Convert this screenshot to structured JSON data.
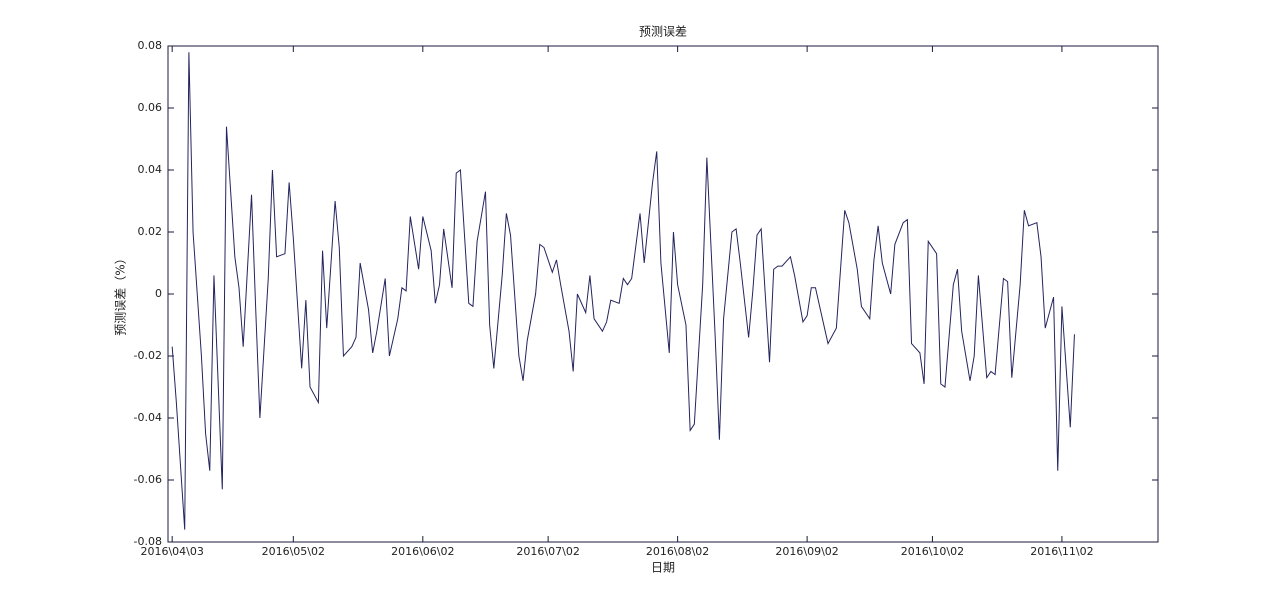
{
  "chart_data": {
    "type": "line",
    "title": "预测误差",
    "xlabel": "日期",
    "ylabel": "预测误差（%）",
    "color": "#24245e",
    "grid": false,
    "xlim": [
      "2016-04-02",
      "2016-11-25"
    ],
    "xticks": [
      {
        "value": "2016-04-03",
        "label": "2016\\04\\03"
      },
      {
        "value": "2016-05-02",
        "label": "2016\\05\\02"
      },
      {
        "value": "2016-06-02",
        "label": "2016\\06\\02"
      },
      {
        "value": "2016-07-02",
        "label": "2016\\07\\02"
      },
      {
        "value": "2016-08-02",
        "label": "2016\\08\\02"
      },
      {
        "value": "2016-09-02",
        "label": "2016\\09\\02"
      },
      {
        "value": "2016-10-02",
        "label": "2016\\10\\02"
      },
      {
        "value": "2016-11-02",
        "label": "2016\\11\\02"
      }
    ],
    "ylim": [
      -0.08,
      0.08
    ],
    "yticks": [
      -0.08,
      -0.06,
      -0.04,
      -0.02,
      0,
      0.02,
      0.04,
      0.06,
      0.08
    ],
    "x": [
      "2016-04-03",
      "2016-04-04",
      "2016-04-06",
      "2016-04-07",
      "2016-04-08",
      "2016-04-10",
      "2016-04-11",
      "2016-04-12",
      "2016-04-13",
      "2016-04-15",
      "2016-04-16",
      "2016-04-18",
      "2016-04-19",
      "2016-04-20",
      "2016-04-22",
      "2016-04-23",
      "2016-04-24",
      "2016-04-26",
      "2016-04-27",
      "2016-04-28",
      "2016-04-30",
      "2016-05-01",
      "2016-05-02",
      "2016-05-04",
      "2016-05-05",
      "2016-05-06",
      "2016-05-08",
      "2016-05-09",
      "2016-05-10",
      "2016-05-12",
      "2016-05-13",
      "2016-05-14",
      "2016-05-16",
      "2016-05-17",
      "2016-05-18",
      "2016-05-20",
      "2016-05-21",
      "2016-05-22",
      "2016-05-24",
      "2016-05-25",
      "2016-05-27",
      "2016-05-28",
      "2016-05-29",
      "2016-05-30",
      "2016-06-01",
      "2016-06-02",
      "2016-06-04",
      "2016-06-05",
      "2016-06-06",
      "2016-06-07",
      "2016-06-09",
      "2016-06-10",
      "2016-06-11",
      "2016-06-13",
      "2016-06-14",
      "2016-06-15",
      "2016-06-17",
      "2016-06-18",
      "2016-06-19",
      "2016-06-21",
      "2016-06-22",
      "2016-06-23",
      "2016-06-25",
      "2016-06-26",
      "2016-06-27",
      "2016-06-29",
      "2016-06-30",
      "2016-07-01",
      "2016-07-03",
      "2016-07-04",
      "2016-07-05",
      "2016-07-07",
      "2016-07-08",
      "2016-07-09",
      "2016-07-11",
      "2016-07-12",
      "2016-07-13",
      "2016-07-15",
      "2016-07-16",
      "2016-07-17",
      "2016-07-19",
      "2016-07-20",
      "2016-07-21",
      "2016-07-22",
      "2016-07-24",
      "2016-07-25",
      "2016-07-27",
      "2016-07-28",
      "2016-07-29",
      "2016-07-31",
      "2016-08-01",
      "2016-08-02",
      "2016-08-04",
      "2016-08-05",
      "2016-08-06",
      "2016-08-08",
      "2016-08-09",
      "2016-08-11",
      "2016-08-12",
      "2016-08-13",
      "2016-08-15",
      "2016-08-16",
      "2016-08-17",
      "2016-08-19",
      "2016-08-20",
      "2016-08-21",
      "2016-08-22",
      "2016-08-24",
      "2016-08-25",
      "2016-08-26",
      "2016-08-27",
      "2016-08-29",
      "2016-08-30",
      "2016-09-01",
      "2016-09-02",
      "2016-09-03",
      "2016-09-04",
      "2016-09-06",
      "2016-09-07",
      "2016-09-09",
      "2016-09-10",
      "2016-09-11",
      "2016-09-12",
      "2016-09-14",
      "2016-09-15",
      "2016-09-17",
      "2016-09-18",
      "2016-09-19",
      "2016-09-20",
      "2016-09-22",
      "2016-09-23",
      "2016-09-25",
      "2016-09-26",
      "2016-09-27",
      "2016-09-29",
      "2016-09-30",
      "2016-10-01",
      "2016-10-03",
      "2016-10-04",
      "2016-10-05",
      "2016-10-07",
      "2016-10-08",
      "2016-10-09",
      "2016-10-11",
      "2016-10-12",
      "2016-10-13",
      "2016-10-15",
      "2016-10-16",
      "2016-10-17",
      "2016-10-19",
      "2016-10-20",
      "2016-10-21",
      "2016-10-23",
      "2016-10-24",
      "2016-10-25",
      "2016-10-27",
      "2016-10-28",
      "2016-10-29",
      "2016-10-31",
      "2016-11-01",
      "2016-11-02",
      "2016-11-04",
      "2016-11-05"
    ],
    "values": [
      -0.017,
      -0.035,
      -0.076,
      0.078,
      0.02,
      -0.02,
      -0.045,
      -0.057,
      0.006,
      -0.063,
      0.054,
      0.012,
      0.002,
      -0.017,
      0.032,
      -0.005,
      -0.04,
      0.005,
      0.04,
      0.012,
      0.013,
      0.036,
      0.018,
      -0.024,
      -0.002,
      -0.03,
      -0.035,
      0.014,
      -0.011,
      0.03,
      0.015,
      -0.02,
      -0.017,
      -0.014,
      0.01,
      -0.005,
      -0.019,
      -0.012,
      0.005,
      -0.02,
      -0.008,
      0.002,
      0.001,
      0.025,
      0.008,
      0.025,
      0.014,
      -0.003,
      0.003,
      0.021,
      0.002,
      0.039,
      0.04,
      -0.003,
      -0.004,
      0.017,
      0.033,
      -0.01,
      -0.024,
      0.006,
      0.026,
      0.019,
      -0.02,
      -0.028,
      -0.015,
      0.0,
      0.016,
      0.015,
      0.007,
      0.011,
      0.003,
      -0.012,
      -0.025,
      0.0,
      -0.006,
      0.006,
      -0.008,
      -0.012,
      -0.009,
      -0.002,
      -0.003,
      0.005,
      0.003,
      0.005,
      0.026,
      0.01,
      0.036,
      0.046,
      0.01,
      -0.019,
      0.02,
      0.003,
      -0.01,
      -0.044,
      -0.042,
      0.003,
      0.044,
      -0.014,
      -0.047,
      -0.008,
      0.02,
      0.021,
      0.01,
      -0.014,
      0.001,
      0.019,
      0.021,
      -0.022,
      0.008,
      0.009,
      0.009,
      0.012,
      0.006,
      -0.009,
      -0.007,
      0.002,
      0.002,
      -0.01,
      -0.016,
      -0.011,
      0.008,
      0.027,
      0.023,
      0.008,
      -0.004,
      -0.008,
      0.011,
      0.022,
      0.01,
      0.0,
      0.016,
      0.023,
      0.024,
      -0.016,
      -0.019,
      -0.029,
      0.017,
      0.013,
      -0.029,
      -0.03,
      0.003,
      0.008,
      -0.012,
      -0.028,
      -0.02,
      0.006,
      -0.027,
      -0.025,
      -0.026,
      0.005,
      0.004,
      -0.027,
      0.003,
      0.027,
      0.022,
      0.023,
      0.012,
      -0.011,
      -0.001,
      -0.057,
      -0.004,
      -0.043,
      -0.013
    ]
  }
}
